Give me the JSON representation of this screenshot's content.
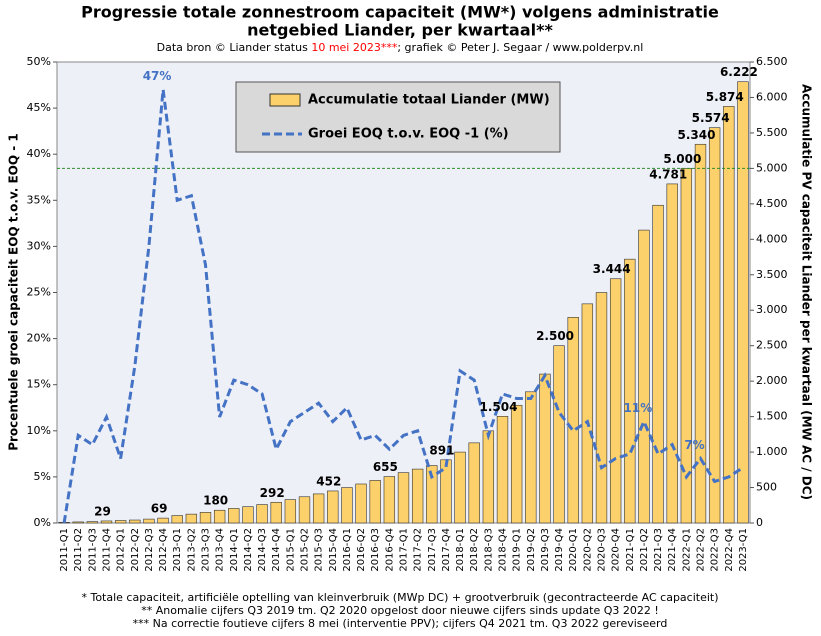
{
  "chart_data": {
    "type": "bar_line",
    "title": [
      "Progressie totale zonnestroom capaciteit (MW*) volgens administratie",
      "netgebied Liander, per kwartaal**"
    ],
    "subtitle": [
      {
        "text": "Data bron © Liander status ",
        "color": "#000000"
      },
      {
        "text": "10 mei 2023***",
        "color": "#ff0000"
      },
      {
        "text": "; grafiek © Peter J. Segaar / www.polderpv.nl",
        "color": "#000000"
      }
    ],
    "ylabel": "Procentuele  groei capaciteit EOQ t.o.v. EOQ - 1",
    "y2label": "Accumulatie  PV capaciteit Liander per kwartaal (MW AC / DC)",
    "footnotes": [
      "* Totale capaciteit, artificiële optelling van kleinverbruik (MWp DC) + grootverbruik (gecontracteerde AC capaciteit)",
      "** Anomalie cijfers Q3 2019 tm. Q2 2020 opgelost door nieuwe cijfers sinds update Q3 2022 !",
      "*** Na correctie foutieve cijfers 8 mei (interventie PPV); cijfers Q4 2021 tm. Q3 2022 gereviseerd"
    ],
    "categories": [
      "2011-Q1",
      "2011-Q2",
      "2011-Q3",
      "2011-Q4",
      "2012-Q1",
      "2012-Q2",
      "2012-Q3",
      "2012-Q4",
      "2013-Q1",
      "2013-Q2",
      "2013-Q3",
      "2013-Q4",
      "2014-Q1",
      "2014-Q2",
      "2014-Q3",
      "2014-Q4",
      "2015-Q1",
      "2015-Q2",
      "2015-Q3",
      "2015-Q4",
      "2016-Q1",
      "2016-Q2",
      "2016-Q3",
      "2016-Q4",
      "2017-Q1",
      "2017-Q2",
      "2017-Q3",
      "2017-Q4",
      "2018-Q1",
      "2018-Q2",
      "2018-Q3",
      "2018-Q4",
      "2019-Q1",
      "2019-Q2",
      "2019-Q3",
      "2019-Q4",
      "2020-Q1",
      "2020-Q2",
      "2020-Q3",
      "2020-Q4",
      "2021-Q1",
      "2021-Q2",
      "2021-Q3",
      "2021-Q4",
      "2022-Q1",
      "2022-Q2",
      "2022-Q3",
      "2022-Q4",
      "2023-Q1"
    ],
    "series": [
      {
        "name": "Accumulatie totaal Liander (MW)",
        "kind": "bar",
        "axis": "y2",
        "color": "#fcd06a",
        "values": [
          10,
          15,
          20,
          29,
          35,
          42,
          55,
          69,
          105,
          125,
          150,
          180,
          205,
          230,
          260,
          292,
          330,
          370,
          410,
          452,
          500,
          550,
          600,
          655,
          710,
          760,
          810,
          891,
          1000,
          1130,
          1300,
          1504,
          1660,
          1850,
          2100,
          2500,
          2900,
          3090,
          3250,
          3444,
          3720,
          4130,
          4480,
          4781,
          5000,
          5340,
          5574,
          5874,
          6222
        ],
        "value_labels": [
          null,
          null,
          null,
          "29",
          null,
          null,
          null,
          "69",
          null,
          null,
          null,
          "180",
          null,
          null,
          null,
          "292",
          null,
          null,
          null,
          "452",
          null,
          null,
          null,
          "655",
          null,
          null,
          null,
          "891",
          null,
          null,
          null,
          "1.504",
          null,
          null,
          null,
          "2.500",
          null,
          null,
          null,
          "3.444",
          null,
          null,
          null,
          "4.781",
          "5.000",
          "5.340",
          "5.574",
          "5.874",
          "6.222"
        ]
      },
      {
        "name": "Groei EOQ t.o.v. EOQ -1 (%)",
        "kind": "line",
        "axis": "y",
        "color": "#4472c4",
        "values": [
          0,
          9.5,
          8.5,
          11.5,
          7,
          17,
          30,
          47,
          35,
          35.5,
          28,
          11.5,
          15.5,
          15,
          14,
          8,
          11,
          12,
          13,
          11,
          12.5,
          9,
          9.5,
          8,
          9.5,
          10,
          5,
          6,
          16.5,
          15.5,
          9.5,
          14,
          13.5,
          13.5,
          16,
          12,
          10,
          11,
          6,
          7,
          7.5,
          11,
          7.5,
          8.5,
          5,
          7,
          4.5,
          5,
          6
        ],
        "value_labels": [
          null,
          null,
          null,
          null,
          null,
          null,
          null,
          "47%",
          null,
          null,
          null,
          null,
          null,
          null,
          null,
          null,
          null,
          null,
          null,
          null,
          null,
          null,
          null,
          null,
          null,
          null,
          null,
          null,
          null,
          null,
          null,
          null,
          null,
          null,
          null,
          null,
          null,
          null,
          null,
          null,
          null,
          "11%",
          null,
          null,
          null,
          "7%",
          null,
          null,
          null
        ]
      }
    ],
    "ylim": [
      0,
      50
    ],
    "yticks": [
      {
        "value": 0,
        "label": "0%"
      },
      {
        "value": 5,
        "label": "5%"
      },
      {
        "value": 10,
        "label": "10%"
      },
      {
        "value": 15,
        "label": "15%"
      },
      {
        "value": 20,
        "label": "20%"
      },
      {
        "value": 25,
        "label": "25%"
      },
      {
        "value": 30,
        "label": "30%"
      },
      {
        "value": 35,
        "label": "35%"
      },
      {
        "value": 40,
        "label": "40%"
      },
      {
        "value": 45,
        "label": "45%"
      },
      {
        "value": 50,
        "label": "50%"
      }
    ],
    "y2lim": [
      0,
      6500
    ],
    "y2ticks": [
      0,
      500,
      {
        "value": 1000,
        "label": "1.000"
      },
      {
        "value": 1500,
        "label": "1.500"
      },
      {
        "value": 2000,
        "label": "2.000"
      },
      {
        "value": 2500,
        "label": "2.500"
      },
      {
        "value": 3000,
        "label": "3.000"
      },
      {
        "value": 3500,
        "label": "3.500"
      },
      {
        "value": 4000,
        "label": "4.000"
      },
      {
        "value": 4500,
        "label": "4.500"
      },
      {
        "value": 5000,
        "label": "5.000"
      },
      {
        "value": 5500,
        "label": "5.500"
      },
      {
        "value": 6000,
        "label": "6.000"
      },
      {
        "value": 6500,
        "label": "6.500"
      }
    ],
    "reference_line_y2": 5000,
    "reference_line_color": "#2e8b2e"
  }
}
